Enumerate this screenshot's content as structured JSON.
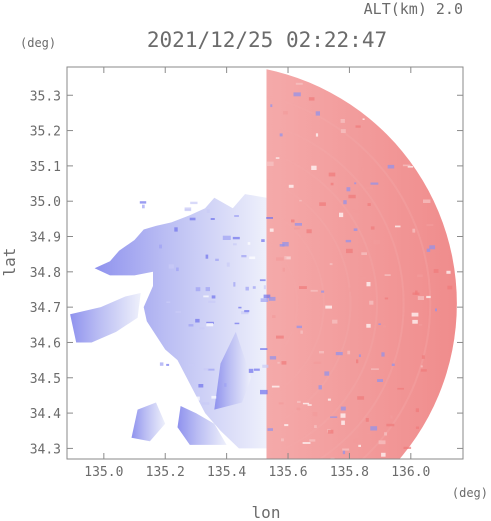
{
  "chart_data": {
    "type": "heatmap",
    "title": "2021/12/25 02:22:47",
    "altitude_label": "ALT(km) 2.0",
    "xlabel": "lon",
    "ylabel": "lat",
    "x_unit": "(deg)",
    "y_unit": "(deg)",
    "xlim": [
      134.88,
      136.17
    ],
    "ylim": [
      34.27,
      35.38
    ],
    "x_ticks": [
      135.0,
      135.2,
      135.4,
      135.6,
      135.8,
      136.0
    ],
    "y_ticks": [
      34.3,
      34.4,
      34.5,
      34.6,
      34.7,
      34.8,
      34.9,
      35.0,
      35.1,
      35.2,
      35.3
    ],
    "x_tick_labels": [
      "135.0",
      "135.2",
      "135.4",
      "135.6",
      "135.8",
      "136.0"
    ],
    "y_tick_labels": [
      "34.3",
      "34.4",
      "34.5",
      "34.6",
      "34.7",
      "34.8",
      "34.9",
      "35.0",
      "35.1",
      "35.2",
      "35.3"
    ],
    "grid": false,
    "colors": {
      "toward_radar": "#7b7cf0",
      "away_from_radar": "#f07a7a",
      "near_zero": "#f5f5fb",
      "axis": "#8a8a8a",
      "text": "#6b6b6b"
    },
    "regions": [
      {
        "polarity": "away",
        "shape": "sector",
        "center": [
          135.37,
          34.71
        ],
        "radius_deg": 0.78,
        "lon_min": 135.53
      },
      {
        "polarity": "toward",
        "shape": "polygon",
        "points": [
          [
            135.53,
            34.3
          ],
          [
            135.53,
            35.01
          ],
          [
            135.46,
            35.02
          ],
          [
            135.42,
            34.98
          ],
          [
            135.36,
            35.01
          ],
          [
            135.33,
            34.98
          ],
          [
            135.28,
            34.96
          ],
          [
            135.22,
            34.94
          ],
          [
            135.17,
            34.93
          ],
          [
            135.13,
            34.92
          ],
          [
            135.1,
            34.89
          ],
          [
            135.05,
            34.86
          ],
          [
            135.02,
            34.83
          ],
          [
            134.97,
            34.81
          ],
          [
            135.02,
            34.79
          ],
          [
            135.1,
            34.79
          ],
          [
            135.16,
            34.8
          ],
          [
            135.16,
            34.76
          ],
          [
            135.13,
            34.7
          ],
          [
            135.14,
            34.66
          ],
          [
            135.17,
            34.62
          ],
          [
            135.2,
            34.58
          ],
          [
            135.24,
            34.55
          ],
          [
            135.27,
            34.5
          ],
          [
            135.3,
            34.45
          ],
          [
            135.33,
            34.4
          ],
          [
            135.38,
            34.35
          ],
          [
            135.44,
            34.3
          ]
        ]
      },
      {
        "polarity": "toward",
        "shape": "polygon",
        "points": [
          [
            134.89,
            34.68
          ],
          [
            134.99,
            34.7
          ],
          [
            135.07,
            34.73
          ],
          [
            135.12,
            34.74
          ],
          [
            135.11,
            34.67
          ],
          [
            135.04,
            34.63
          ],
          [
            134.96,
            34.6
          ],
          [
            134.91,
            34.6
          ]
        ]
      },
      {
        "polarity": "toward",
        "shape": "polygon",
        "points": [
          [
            135.25,
            34.42
          ],
          [
            135.3,
            34.4
          ],
          [
            135.36,
            34.37
          ],
          [
            135.4,
            34.31
          ],
          [
            135.28,
            34.31
          ],
          [
            135.24,
            34.36
          ]
        ]
      },
      {
        "polarity": "toward",
        "shape": "polygon",
        "points": [
          [
            135.11,
            34.41
          ],
          [
            135.17,
            34.43
          ],
          [
            135.2,
            34.37
          ],
          [
            135.15,
            34.32
          ],
          [
            135.09,
            34.33
          ]
        ]
      },
      {
        "polarity": "toward",
        "shape": "polygon",
        "points": [
          [
            135.43,
            34.63
          ],
          [
            135.48,
            34.5
          ],
          [
            135.45,
            34.43
          ],
          [
            135.36,
            34.41
          ],
          [
            135.38,
            34.54
          ]
        ]
      }
    ]
  }
}
